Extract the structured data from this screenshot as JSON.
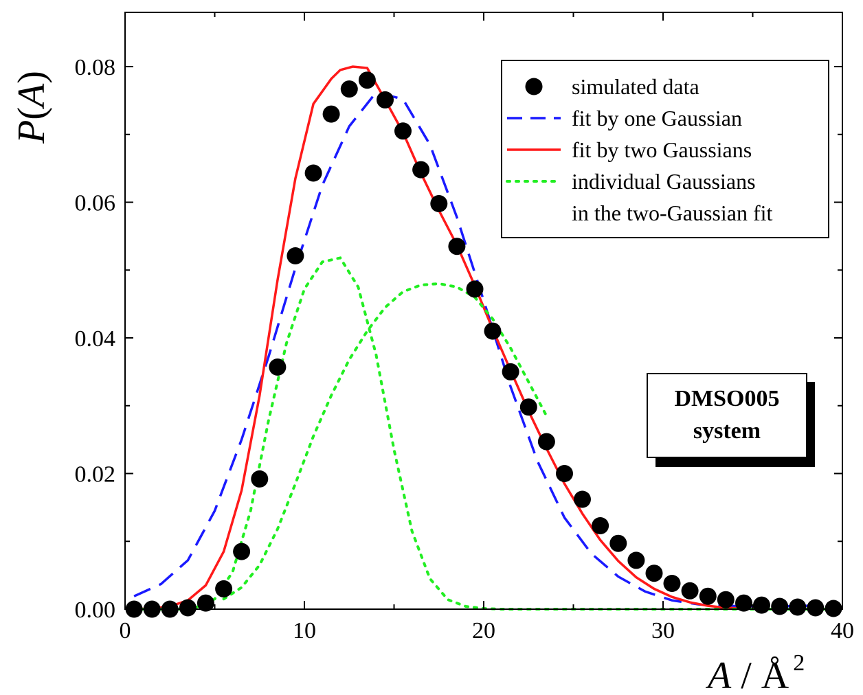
{
  "chart_data": {
    "type": "scatter",
    "title": "",
    "xlim": [
      0,
      40
    ],
    "ylim": [
      0,
      0.088
    ],
    "x_ticks": [
      "0",
      "10",
      "20",
      "30",
      "40"
    ],
    "y_ticks": [
      "0.00",
      "0.02",
      "0.04",
      "0.06",
      "0.08"
    ],
    "xlabel": {
      "var": "A",
      "sep": " / ",
      "unit": "Å",
      "sup": "2"
    },
    "ylabel": {
      "var": "P",
      "open": "(",
      "arg": "A",
      "close": ")"
    },
    "grid": false,
    "legend_position": "top-right",
    "legend": [
      {
        "label": "simulated data",
        "style": "marker",
        "color": "#000000"
      },
      {
        "label": "fit by one Gaussian",
        "style": "dashed",
        "color": "#1a1aff"
      },
      {
        "label": "fit by two Gaussians",
        "style": "solid",
        "color": "#ff1a1a"
      },
      {
        "label": "individual Gaussians",
        "style": "dotted",
        "color": "#22ee22"
      },
      {
        "label": "in the two-Gaussian fit",
        "style": "none",
        "color": ""
      }
    ],
    "annotation": [
      "DMSO005",
      "system"
    ],
    "series": [
      {
        "name": "simulated data",
        "kind": "markers",
        "color": "#000000",
        "x": [
          0.5,
          1.5,
          2.5,
          3.5,
          4.5,
          5.5,
          6.5,
          7.5,
          8.5,
          9.5,
          10.5,
          11.5,
          12.5,
          13.5,
          14.5,
          15.5,
          16.5,
          17.5,
          18.5,
          19.5,
          20.5,
          21.5,
          22.5,
          23.5,
          24.5,
          25.5,
          26.5,
          27.5,
          28.5,
          29.5,
          30.5,
          31.5,
          32.5,
          33.5,
          34.5,
          35.5,
          36.5,
          37.5,
          38.5,
          39.5
        ],
        "y": [
          0.0,
          0.0,
          0.0,
          0.0002,
          0.0009,
          0.003,
          0.0085,
          0.0192,
          0.0357,
          0.0521,
          0.0643,
          0.073,
          0.0767,
          0.078,
          0.0751,
          0.0705,
          0.0648,
          0.0598,
          0.0535,
          0.0472,
          0.041,
          0.035,
          0.0298,
          0.0247,
          0.02,
          0.0162,
          0.0123,
          0.0097,
          0.0072,
          0.0053,
          0.0038,
          0.0027,
          0.0019,
          0.0014,
          0.0009,
          0.0006,
          0.0004,
          0.0003,
          0.0002,
          0.0001
        ]
      },
      {
        "name": "fit by one Gaussian",
        "kind": "dashed",
        "color": "#1a1aff",
        "x": [
          0.5,
          2.0,
          3.5,
          5.0,
          6.5,
          8.0,
          9.5,
          11.0,
          12.5,
          14.0,
          15.5,
          17.0,
          18.5,
          20.0,
          21.5,
          23.0,
          24.5,
          26.0,
          27.5,
          29.0,
          30.5,
          32.0,
          33.5,
          35.0,
          36.5,
          38.0,
          39.5
        ],
        "y": [
          0.0019,
          0.0037,
          0.0072,
          0.0145,
          0.025,
          0.0372,
          0.0503,
          0.0625,
          0.0712,
          0.0762,
          0.0752,
          0.0685,
          0.0578,
          0.0455,
          0.0328,
          0.0218,
          0.0135,
          0.0082,
          0.0048,
          0.0026,
          0.0013,
          0.0007,
          0.0005,
          0.0004,
          0.0004,
          0.0005,
          0.0006
        ]
      },
      {
        "name": "fit by two Gaussians",
        "kind": "solid",
        "color": "#ff1a1a",
        "x": [
          0.5,
          1.5,
          2.5,
          3.5,
          4.5,
          5.5,
          6.5,
          7.5,
          8.5,
          9.5,
          10.5,
          11.5,
          12.0,
          12.7,
          13.5,
          14.5,
          15.5,
          16.5,
          17.5,
          18.5,
          19.5,
          20.5,
          21.5,
          22.5,
          23.5,
          24.5,
          25.5,
          26.5,
          27.5,
          28.5,
          29.5,
          30.5,
          31.5,
          32.5,
          33.5,
          34.5,
          35.5,
          36.5,
          37.5,
          38.5,
          39.5
        ],
        "y": [
          0.0,
          0.0001,
          0.0004,
          0.0013,
          0.0035,
          0.0085,
          0.0175,
          0.0315,
          0.0485,
          0.0635,
          0.0745,
          0.0782,
          0.0795,
          0.08,
          0.0798,
          0.0751,
          0.0703,
          0.0643,
          0.0588,
          0.0537,
          0.0477,
          0.0413,
          0.0352,
          0.0292,
          0.0237,
          0.0185,
          0.0141,
          0.0102,
          0.0071,
          0.0047,
          0.003,
          0.0018,
          0.001,
          0.0005,
          0.0002,
          0.0001,
          0.0,
          0.0,
          0.0,
          0.0,
          0.0
        ]
      },
      {
        "name": "individual Gaussian 1",
        "kind": "dotted",
        "color": "#22ee22",
        "x": [
          1.0,
          2.0,
          3.0,
          4.0,
          5.0,
          6.0,
          7.0,
          8.0,
          9.0,
          10.0,
          11.0,
          12.0,
          13.0,
          14.0,
          15.0,
          16.0,
          17.0,
          18.0,
          19.0,
          20.0,
          21.0,
          22.0,
          23.0,
          24.0,
          25.0,
          26.0,
          27.0,
          28.0,
          29.0,
          30.0,
          31.0,
          32.0,
          33.0,
          34.0,
          35.0,
          36.0,
          37.0,
          38.0,
          39.0
        ],
        "y": [
          0.0,
          0.0,
          0.0,
          0.0003,
          0.0015,
          0.0055,
          0.0145,
          0.0278,
          0.0392,
          0.0472,
          0.0512,
          0.0518,
          0.0475,
          0.0375,
          0.0235,
          0.0115,
          0.0045,
          0.0014,
          0.0004,
          0.0001,
          0.0,
          0.0,
          0.0,
          0.0,
          0.0,
          0.0,
          0.0,
          0.0,
          0.0,
          0.0,
          0.0,
          0.0,
          0.0,
          0.0,
          0.0,
          0.0,
          0.0,
          0.0,
          0.0
        ]
      },
      {
        "name": "individual Gaussian 2",
        "kind": "dotted",
        "color": "#22ee22",
        "x": [
          5.5,
          6.5,
          7.5,
          8.5,
          9.5,
          10.5,
          11.5,
          12.5,
          13.5,
          14.5,
          15.5,
          16.5,
          17.5,
          18.5,
          19.5,
          20.5,
          21.5,
          22.5,
          23.5
        ],
        "y": [
          0.0015,
          0.0032,
          0.0065,
          0.0118,
          0.0185,
          0.0255,
          0.0315,
          0.0368,
          0.041,
          0.0445,
          0.0468,
          0.0478,
          0.048,
          0.0475,
          0.046,
          0.0428,
          0.0385,
          0.0335,
          0.0285
        ]
      }
    ]
  }
}
